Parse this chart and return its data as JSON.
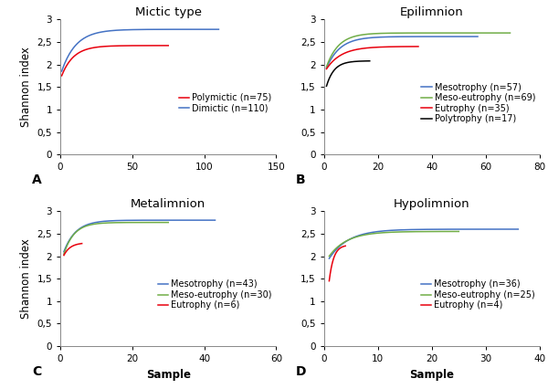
{
  "panels": {
    "A": {
      "title": "Mictic type",
      "label": "A",
      "xlim": [
        0,
        150
      ],
      "xticks": [
        0,
        50,
        100,
        150
      ],
      "ylim": [
        0,
        3
      ],
      "yticks": [
        0,
        0.5,
        1,
        1.5,
        2,
        2.5,
        3
      ],
      "ylabel": "Shannon index",
      "xlabel": "",
      "legend_loc": "right",
      "series": [
        {
          "label": "Polymictic (n=75)",
          "color": "#e8000d",
          "n": 75,
          "y0": 1.75,
          "ymax": 2.42,
          "rate": 0.12
        },
        {
          "label": "Dimictic (n=110)",
          "color": "#4472c4",
          "n": 110,
          "y0": 1.85,
          "ymax": 2.78,
          "rate": 0.1
        }
      ]
    },
    "B": {
      "title": "Epilimnion",
      "label": "B",
      "xlim": [
        0,
        80
      ],
      "xticks": [
        0,
        20,
        40,
        60,
        80
      ],
      "ylim": [
        0,
        3
      ],
      "yticks": [
        0,
        0.5,
        1,
        1.5,
        2,
        2.5,
        3
      ],
      "ylabel": "",
      "xlabel": "",
      "legend_loc": "right",
      "series": [
        {
          "label": "Mesotrophy (n=57)",
          "color": "#4472c4",
          "n": 57,
          "y0": 1.92,
          "ymax": 2.62,
          "rate": 0.2
        },
        {
          "label": "Meso-eutrophy (n=69)",
          "color": "#70ad47",
          "n": 69,
          "y0": 1.95,
          "ymax": 2.7,
          "rate": 0.22
        },
        {
          "label": "Eutrophy (n=35)",
          "color": "#e8000d",
          "n": 35,
          "y0": 1.9,
          "ymax": 2.4,
          "rate": 0.18
        },
        {
          "label": "Polytrophy (n=17)",
          "color": "#000000",
          "n": 17,
          "y0": 1.52,
          "ymax": 2.08,
          "rate": 0.35
        }
      ]
    },
    "C": {
      "title": "Metalimnion",
      "label": "C",
      "xlim": [
        0,
        60
      ],
      "xticks": [
        0,
        20,
        40,
        60
      ],
      "ylim": [
        0,
        3
      ],
      "yticks": [
        0,
        0.5,
        1,
        1.5,
        2,
        2.5,
        3
      ],
      "ylabel": "Shannon index",
      "xlabel": "Sample",
      "legend_loc": "right",
      "series": [
        {
          "label": "Mesotrophy (n=43)",
          "color": "#4472c4",
          "n": 43,
          "y0": 2.1,
          "ymax": 2.8,
          "rate": 0.3
        },
        {
          "label": "Meso-eutrophy (n=30)",
          "color": "#70ad47",
          "n": 30,
          "y0": 2.05,
          "ymax": 2.75,
          "rate": 0.35
        },
        {
          "label": "Eutrophy (n=6)",
          "color": "#e8000d",
          "n": 6,
          "y0": 2.02,
          "ymax": 2.3,
          "rate": 0.55
        }
      ]
    },
    "D": {
      "title": "Hypolimnion",
      "label": "D",
      "xlim": [
        0,
        40
      ],
      "xticks": [
        0,
        10,
        20,
        30,
        40
      ],
      "ylim": [
        0,
        3
      ],
      "yticks": [
        0,
        0.5,
        1,
        1.5,
        2,
        2.5,
        3
      ],
      "ylabel": "",
      "xlabel": "Sample",
      "legend_loc": "right",
      "series": [
        {
          "label": "Mesotrophy (n=36)",
          "color": "#4472c4",
          "n": 36,
          "y0": 1.95,
          "ymax": 2.6,
          "rate": 0.28
        },
        {
          "label": "Meso-eutrophy (n=25)",
          "color": "#70ad47",
          "n": 25,
          "y0": 2.0,
          "ymax": 2.55,
          "rate": 0.3
        },
        {
          "label": "Eutrophy (n=4)",
          "color": "#e8000d",
          "n": 4,
          "y0": 1.45,
          "ymax": 2.25,
          "rate": 1.2
        }
      ]
    }
  },
  "tick_label_size": 7.5,
  "axis_label_size": 8.5,
  "title_size": 9.5,
  "legend_size": 7,
  "panel_label_size": 10,
  "background_color": "#ffffff"
}
